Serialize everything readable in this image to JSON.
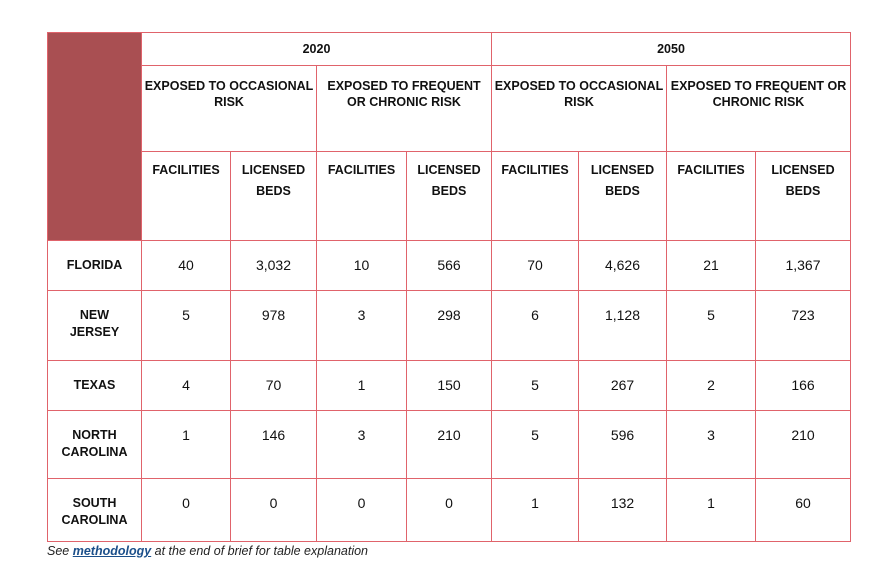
{
  "table": {
    "years": [
      "2020",
      "2050"
    ],
    "risks": [
      "EXPOSED TO OCCASIONAL RISK",
      "EXPOSED TO FREQUENT OR CHRONIC RISK",
      "EXPOSED TO OCCASIONAL RISK",
      "EXPOSED TO FREQUENT OR CHRONIC RISK"
    ],
    "subheaders": [
      "FACILITIES",
      "LICENSED BEDS",
      "FACILITIES",
      "LICENSED BEDS",
      "FACILITIES",
      "LICENSED BEDS",
      "FACILITIES",
      "LICENSED BEDS"
    ],
    "rows": [
      {
        "state": "FLORIDA",
        "values": [
          "40",
          "3,032",
          "10",
          "566",
          "70",
          "4,626",
          "21",
          "1,367"
        ]
      },
      {
        "state": "NEW JERSEY",
        "values": [
          "5",
          "978",
          "3",
          "298",
          "6",
          "1,128",
          "5",
          "723"
        ]
      },
      {
        "state": "TEXAS",
        "values": [
          "4",
          "70",
          "1",
          "150",
          "5",
          "267",
          "2",
          "166"
        ]
      },
      {
        "state": "NORTH CAROLINA",
        "values": [
          "1",
          "146",
          "3",
          "210",
          "5",
          "596",
          "3",
          "210"
        ]
      },
      {
        "state": "SOUTH CAROLINA",
        "values": [
          "0",
          "0",
          "0",
          "0",
          "1",
          "132",
          "1",
          "60"
        ]
      }
    ]
  },
  "note": {
    "prefix": "See ",
    "link": "methodology",
    "suffix": " at the end of brief for table explanation"
  },
  "colors": {
    "border": "#e0636b",
    "corner": "#a94f52",
    "link": "#1b4f8a"
  }
}
